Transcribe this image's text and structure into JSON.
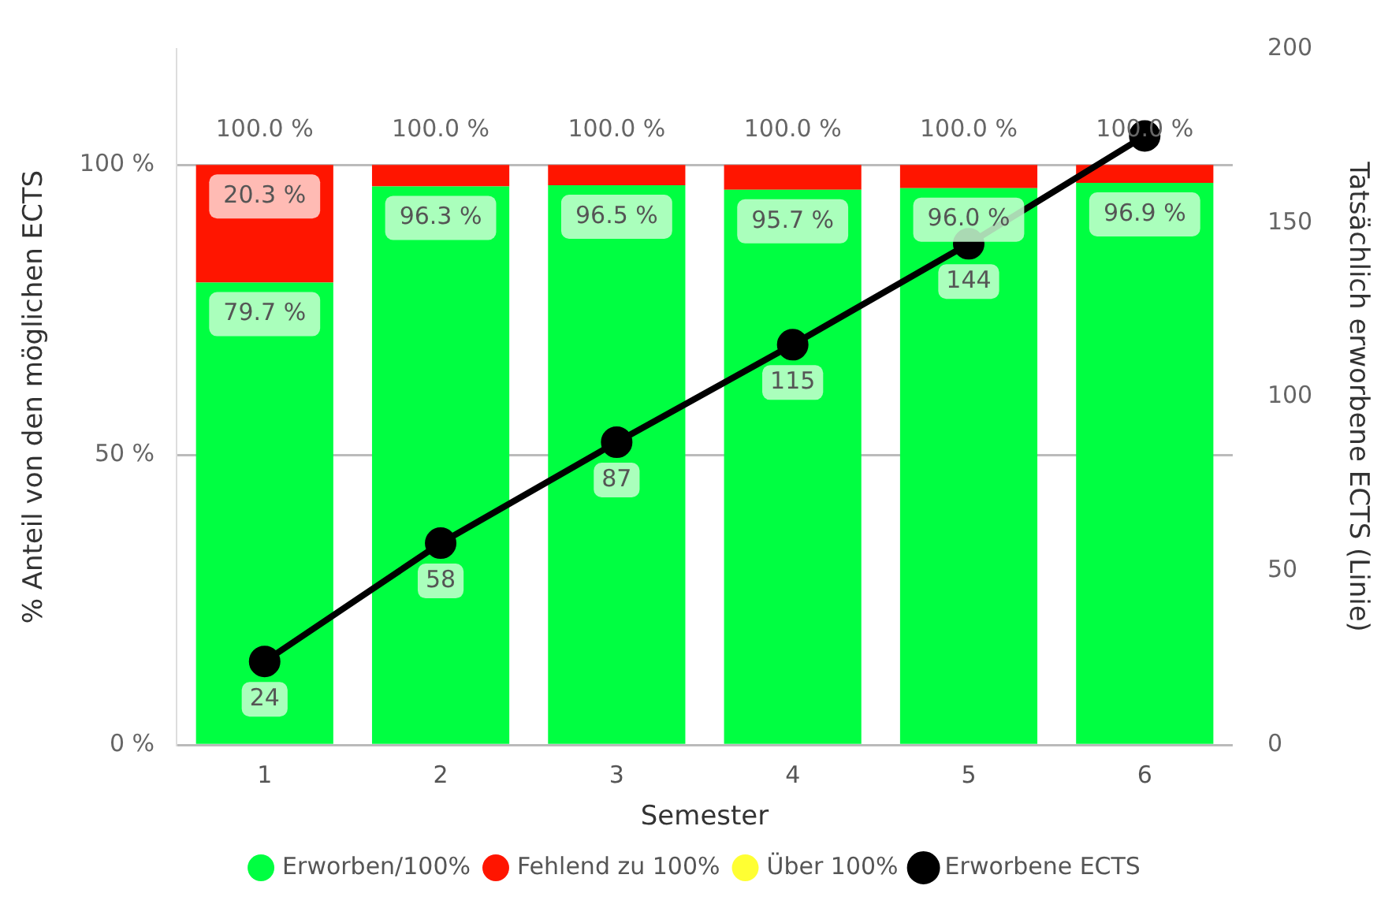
{
  "chart_data": {
    "type": "bar",
    "stacked": true,
    "xlabel": "Semester",
    "ylabel": "% Anteil von den möglichen ECTS",
    "y2label": "Tatsächlich erworbene ECTS (Linie)",
    "categories": [
      "1",
      "2",
      "3",
      "4",
      "5",
      "6"
    ],
    "series": [
      {
        "name": "Erworben/100%",
        "color": "#00ff41",
        "values": [
          79.7,
          96.3,
          96.5,
          95.7,
          96.0,
          96.9
        ],
        "value_labels": [
          "79.7 %",
          "96.3 %",
          "96.5 %",
          "95.7 %",
          "96.0 %",
          "96.9 %"
        ]
      },
      {
        "name": "Fehlend zu 100%",
        "color": "#ff1500",
        "values": [
          20.3,
          3.7,
          3.5,
          4.3,
          4.0,
          3.1
        ],
        "value_labels": [
          "20.3 %",
          null,
          null,
          null,
          null,
          null
        ]
      },
      {
        "name": "Über 100%",
        "color": "#ffff33",
        "values": [
          0,
          0,
          0,
          0,
          0,
          0
        ]
      },
      {
        "name": "Erworbene ECTS",
        "type": "line",
        "axis": "y2",
        "color": "#000000",
        "marker": "circle",
        "values": [
          24,
          58,
          87,
          115,
          144,
          175
        ],
        "value_labels": [
          "24",
          "58",
          "87",
          "115",
          "144",
          null
        ]
      }
    ],
    "totals": [
      "100.0 %",
      "100.0 %",
      "100.0 %",
      "100.0 %",
      "100.0 %",
      "100.0 %"
    ],
    "ylim": [
      0,
      120
    ],
    "yticks": [
      {
        "value": 0,
        "label": "0 %"
      },
      {
        "value": 50,
        "label": "50 %"
      },
      {
        "value": 100,
        "label": "100 %"
      }
    ],
    "y2lim": [
      0,
      200
    ],
    "y2ticks": [
      0,
      50,
      100,
      150,
      200
    ],
    "grid": "y",
    "legend": "bottom"
  }
}
